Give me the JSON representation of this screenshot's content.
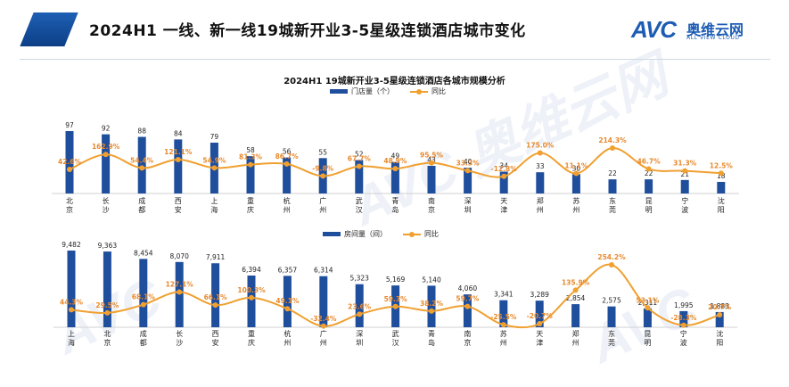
{
  "header": {
    "title": "2024H1 一线、新一线19城新开业3-5星级连锁酒店城市变化",
    "logo_mark": "AVC",
    "logo_cn": "奥维云网",
    "logo_en": "ALL VIEW CLOUD"
  },
  "watermark": {
    "mark": "AVC",
    "cn": "奥维云网",
    "en": "ALL VIEW CLOUD"
  },
  "colors": {
    "bar": "#1f4e9c",
    "line": "#f0a030",
    "label_line": "#e8892c",
    "header_bar": "#1e5fb4"
  },
  "chart_data": [
    {
      "type": "bar",
      "title": "2024H1 19城新开业3-5星级连锁酒店各城市规模分析",
      "categories": [
        "北京",
        "长沙",
        "成都",
        "西安",
        "上海",
        "重庆",
        "杭州",
        "广州",
        "武汉",
        "青岛",
        "南京",
        "深圳",
        "天津",
        "郑州",
        "苏州",
        "东莞",
        "昆明",
        "宁波",
        "沈阳"
      ],
      "series": [
        {
          "name": "门店量（个）",
          "kind": "bar",
          "values": [
            97,
            92,
            88,
            84,
            79,
            58,
            56,
            55,
            52,
            49,
            43,
            40,
            34,
            33,
            30,
            22,
            22,
            21,
            18
          ],
          "value_labels": [
            "97",
            "92",
            "88",
            "84",
            "79",
            "58",
            "56",
            "55",
            "52",
            "49",
            "43",
            "40",
            "34",
            "33",
            "30",
            "22",
            "22",
            "21",
            "18"
          ]
        },
        {
          "name": "同比",
          "kind": "line",
          "values": [
            42.6,
            162.9,
            54.4,
            121.1,
            54.9,
            81.3,
            86.7,
            -9.8,
            67.7,
            48.9,
            95.5,
            33.3,
            -12.8,
            175.0,
            11.1,
            214.3,
            46.7,
            31.3,
            12.5
          ],
          "value_labels": [
            "42.6%",
            "162.9%",
            "54.4%",
            "121.1%",
            "54.9%",
            "81.3%",
            "86.7%",
            "-9.8%",
            "67.7%",
            "48.9%",
            "95.5%",
            "33.3%",
            "-12.8%",
            "175.0%",
            "11.1%",
            "214.3%",
            "46.7%",
            "31.3%",
            "12.5%"
          ]
        }
      ]
    },
    {
      "type": "bar",
      "categories": [
        "上海",
        "北京",
        "成都",
        "长沙",
        "西安",
        "重庆",
        "杭州",
        "广州",
        "深圳",
        "武汉",
        "青岛",
        "南京",
        "苏州",
        "天津",
        "郑州",
        "东莞",
        "昆明",
        "宁波",
        "沈阳"
      ],
      "series": [
        {
          "name": "房间量（间）",
          "kind": "bar",
          "values": [
            9482,
            9363,
            8454,
            8070,
            7911,
            6394,
            6357,
            6314,
            5323,
            5169,
            5140,
            4060,
            3341,
            3289,
            2854,
            2575,
            2311,
            1995,
            1883
          ],
          "value_labels": [
            "9,482",
            "9,363",
            "8,454",
            "8,070",
            "7,911",
            "6,394",
            "6,357",
            "6,314",
            "5,323",
            "5,169",
            "5,140",
            "4,060",
            "3,341",
            "3,289",
            "2,854",
            "2,575",
            "2,311",
            "1,995",
            "1,883"
          ]
        },
        {
          "name": "同比",
          "kind": "line",
          "values": [
            44.3,
            29.5,
            68.1,
            127.1,
            66.1,
            100.3,
            49.1,
            -32.4,
            23.6,
            59.3,
            38.2,
            59.7,
            -25.5,
            -20.7,
            135.9,
            254.2,
            53.1,
            -28.3,
            20.7
          ],
          "value_labels": [
            "44.3%",
            "29.5%",
            "68.1%",
            "127.1%",
            "66.1%",
            "100.3%",
            "49.1%",
            "-32.4%",
            "23.6%",
            "59.3%",
            "38.2%",
            "59.7%",
            "-25.5%",
            "-20.7%",
            "135.9%",
            "254.2%",
            "53.1%",
            "-28.3%",
            "20.7%"
          ]
        }
      ]
    }
  ]
}
